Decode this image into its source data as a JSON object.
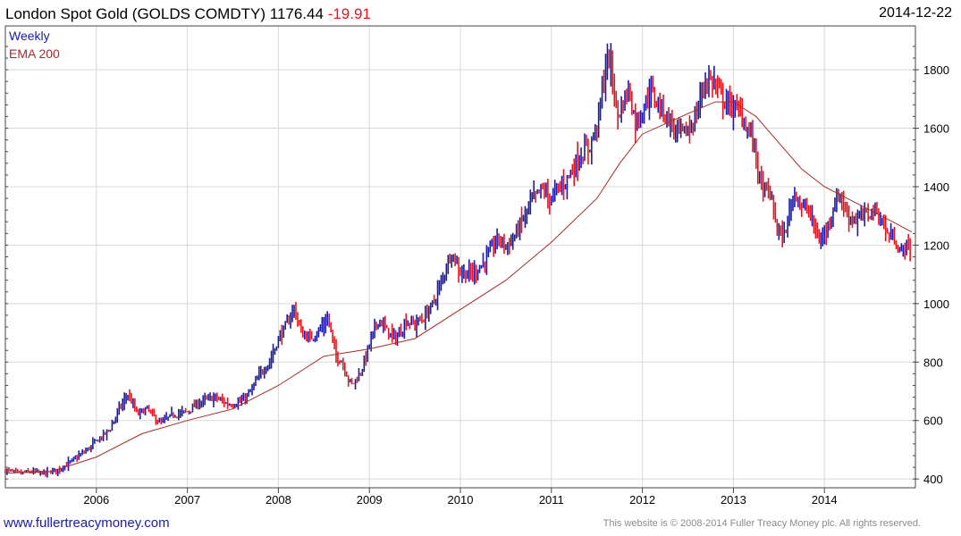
{
  "header": {
    "title": "London Spot Gold (GOLDS COMDTY)",
    "last": "1176.44",
    "change": "-19.91",
    "date": "2014-12-22"
  },
  "footer": {
    "site": "www.fullertreacymoney.com",
    "copyright": "This website is © 2008-2014 Fuller Treacy Money plc. All rights reserved."
  },
  "colors": {
    "up": "#1a1aa8",
    "down": "#e8141b",
    "ema": "#a52a2a",
    "grid": "#d8d8d8",
    "frame": "#444444"
  },
  "chart_data": {
    "type": "line",
    "series": [
      {
        "name": "Weekly",
        "kind": "weekly-bars"
      },
      {
        "name": "EMA 200",
        "kind": "moving-average"
      }
    ],
    "xlim": [
      2005.0,
      2015.0
    ],
    "ylim": [
      370,
      1950
    ],
    "x_ticks": [
      "2006",
      "2007",
      "2008",
      "2009",
      "2010",
      "2011",
      "2012",
      "2013",
      "2014"
    ],
    "x_tick_values": [
      2006,
      2007,
      2008,
      2009,
      2010,
      2011,
      2012,
      2013,
      2014
    ],
    "y_ticks": [
      "400",
      "600",
      "800",
      "1000",
      "1200",
      "1400",
      "1600",
      "1800"
    ],
    "y_tick_values": [
      400,
      600,
      800,
      1000,
      1200,
      1400,
      1600,
      1800
    ],
    "price_points": [
      [
        2005.0,
        430
      ],
      [
        2005.15,
        420
      ],
      [
        2005.3,
        425
      ],
      [
        2005.45,
        420
      ],
      [
        2005.6,
        435
      ],
      [
        2005.75,
        465
      ],
      [
        2005.9,
        500
      ],
      [
        2006.0,
        530
      ],
      [
        2006.15,
        570
      ],
      [
        2006.25,
        640
      ],
      [
        2006.35,
        690
      ],
      [
        2006.45,
        620
      ],
      [
        2006.55,
        640
      ],
      [
        2006.7,
        590
      ],
      [
        2006.85,
        620
      ],
      [
        2007.0,
        630
      ],
      [
        2007.15,
        665
      ],
      [
        2007.3,
        680
      ],
      [
        2007.45,
        655
      ],
      [
        2007.6,
        665
      ],
      [
        2007.7,
        700
      ],
      [
        2007.8,
        760
      ],
      [
        2007.9,
        800
      ],
      [
        2008.0,
        880
      ],
      [
        2008.1,
        930
      ],
      [
        2008.17,
        990
      ],
      [
        2008.25,
        900
      ],
      [
        2008.35,
        880
      ],
      [
        2008.45,
        910
      ],
      [
        2008.55,
        950
      ],
      [
        2008.62,
        830
      ],
      [
        2008.7,
        800
      ],
      [
        2008.8,
        720
      ],
      [
        2008.9,
        760
      ],
      [
        2009.0,
        860
      ],
      [
        2009.1,
        950
      ],
      [
        2009.2,
        900
      ],
      [
        2009.3,
        880
      ],
      [
        2009.4,
        940
      ],
      [
        2009.5,
        930
      ],
      [
        2009.6,
        950
      ],
      [
        2009.7,
        1000
      ],
      [
        2009.8,
        1080
      ],
      [
        2009.9,
        1180
      ],
      [
        2010.0,
        1110
      ],
      [
        2010.1,
        1100
      ],
      [
        2010.2,
        1120
      ],
      [
        2010.3,
        1160
      ],
      [
        2010.4,
        1220
      ],
      [
        2010.5,
        1200
      ],
      [
        2010.6,
        1230
      ],
      [
        2010.7,
        1300
      ],
      [
        2010.8,
        1360
      ],
      [
        2010.9,
        1390
      ],
      [
        2011.0,
        1360
      ],
      [
        2011.1,
        1400
      ],
      [
        2011.2,
        1440
      ],
      [
        2011.3,
        1500
      ],
      [
        2011.4,
        1530
      ],
      [
        2011.5,
        1600
      ],
      [
        2011.55,
        1720
      ],
      [
        2011.62,
        1850
      ],
      [
        2011.67,
        1780
      ],
      [
        2011.72,
        1640
      ],
      [
        2011.78,
        1680
      ],
      [
        2011.85,
        1740
      ],
      [
        2011.92,
        1620
      ],
      [
        2012.0,
        1660
      ],
      [
        2012.08,
        1730
      ],
      [
        2012.15,
        1690
      ],
      [
        2012.25,
        1650
      ],
      [
        2012.35,
        1600
      ],
      [
        2012.45,
        1580
      ],
      [
        2012.55,
        1610
      ],
      [
        2012.62,
        1680
      ],
      [
        2012.7,
        1770
      ],
      [
        2012.78,
        1760
      ],
      [
        2012.85,
        1720
      ],
      [
        2012.92,
        1690
      ],
      [
        2013.0,
        1670
      ],
      [
        2013.08,
        1650
      ],
      [
        2013.15,
        1600
      ],
      [
        2013.22,
        1560
      ],
      [
        2013.3,
        1400
      ],
      [
        2013.4,
        1380
      ],
      [
        2013.48,
        1260
      ],
      [
        2013.55,
        1220
      ],
      [
        2013.62,
        1320
      ],
      [
        2013.68,
        1390
      ],
      [
        2013.75,
        1330
      ],
      [
        2013.82,
        1320
      ],
      [
        2013.88,
        1270
      ],
      [
        2013.95,
        1210
      ],
      [
        2014.02,
        1250
      ],
      [
        2014.1,
        1330
      ],
      [
        2014.17,
        1380
      ],
      [
        2014.25,
        1300
      ],
      [
        2014.35,
        1290
      ],
      [
        2014.45,
        1300
      ],
      [
        2014.55,
        1320
      ],
      [
        2014.62,
        1290
      ],
      [
        2014.7,
        1230
      ],
      [
        2014.78,
        1220
      ],
      [
        2014.84,
        1170
      ],
      [
        2014.9,
        1200
      ],
      [
        2014.96,
        1176
      ]
    ],
    "ema_points": [
      [
        2005.0,
        420
      ],
      [
        2005.5,
        425
      ],
      [
        2006.0,
        475
      ],
      [
        2006.5,
        555
      ],
      [
        2007.0,
        600
      ],
      [
        2007.5,
        640
      ],
      [
        2008.0,
        720
      ],
      [
        2008.5,
        820
      ],
      [
        2009.0,
        845
      ],
      [
        2009.5,
        880
      ],
      [
        2010.0,
        980
      ],
      [
        2010.5,
        1080
      ],
      [
        2011.0,
        1210
      ],
      [
        2011.5,
        1360
      ],
      [
        2011.75,
        1480
      ],
      [
        2012.0,
        1580
      ],
      [
        2012.5,
        1650
      ],
      [
        2012.8,
        1690
      ],
      [
        2013.0,
        1690
      ],
      [
        2013.25,
        1640
      ],
      [
        2013.5,
        1550
      ],
      [
        2013.75,
        1460
      ],
      [
        2014.0,
        1400
      ],
      [
        2014.25,
        1360
      ],
      [
        2014.5,
        1320
      ],
      [
        2014.75,
        1280
      ],
      [
        2014.96,
        1245
      ]
    ]
  }
}
